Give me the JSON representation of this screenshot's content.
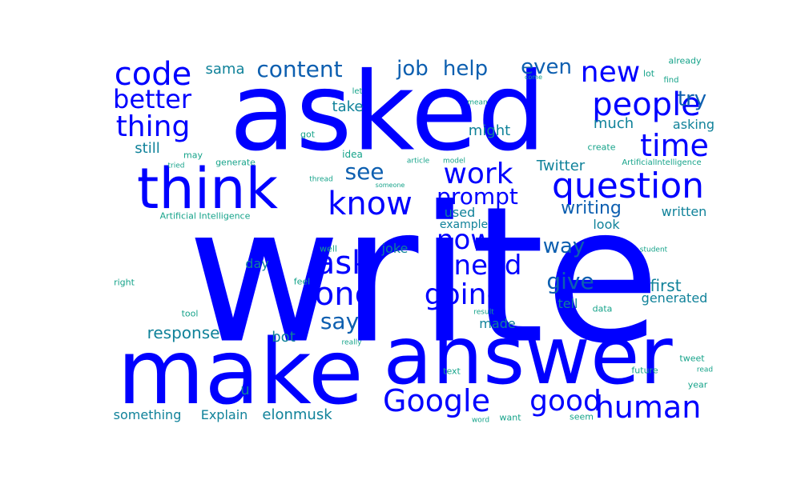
{
  "palette": {
    "primary": "#0000ff",
    "secondary": "#0d5fb0",
    "tertiary": "#10829a",
    "quaternary": "#16a38a"
  },
  "words": [
    {
      "text": "write",
      "level": "primary"
    },
    {
      "text": "asked",
      "level": "primary"
    },
    {
      "text": "make",
      "level": "primary"
    },
    {
      "text": "answer",
      "level": "primary"
    },
    {
      "text": "think",
      "level": "primary"
    },
    {
      "text": "question",
      "level": "primary"
    },
    {
      "text": "people",
      "level": "primary"
    },
    {
      "text": "code",
      "level": "primary"
    },
    {
      "text": "know",
      "level": "primary"
    },
    {
      "text": "time",
      "level": "primary"
    },
    {
      "text": "Google",
      "level": "primary"
    },
    {
      "text": "human",
      "level": "primary"
    },
    {
      "text": "thing",
      "level": "primary"
    },
    {
      "text": "better",
      "level": "primary"
    },
    {
      "text": "work",
      "level": "primary"
    },
    {
      "text": "new",
      "level": "primary"
    },
    {
      "text": "ask",
      "level": "primary"
    },
    {
      "text": "one",
      "level": "primary"
    },
    {
      "text": "going",
      "level": "primary"
    },
    {
      "text": "good",
      "level": "primary"
    },
    {
      "text": "now",
      "level": "primary"
    },
    {
      "text": "need",
      "level": "primary"
    },
    {
      "text": "prompt",
      "level": "primary"
    },
    {
      "text": "even",
      "level": "secondary"
    },
    {
      "text": "help",
      "level": "secondary"
    },
    {
      "text": "job",
      "level": "secondary"
    },
    {
      "text": "content",
      "level": "secondary"
    },
    {
      "text": "see",
      "level": "secondary"
    },
    {
      "text": "say",
      "level": "secondary"
    },
    {
      "text": "give",
      "level": "secondary"
    },
    {
      "text": "way",
      "level": "secondary"
    },
    {
      "text": "try",
      "level": "secondary"
    },
    {
      "text": "writing",
      "level": "secondary"
    },
    {
      "text": "Twitter",
      "level": "tertiary"
    },
    {
      "text": "response",
      "level": "tertiary"
    },
    {
      "text": "first",
      "level": "tertiary"
    },
    {
      "text": "sama",
      "level": "tertiary"
    },
    {
      "text": "much",
      "level": "tertiary"
    },
    {
      "text": "take",
      "level": "tertiary"
    },
    {
      "text": "might",
      "level": "tertiary"
    },
    {
      "text": "still",
      "level": "tertiary"
    },
    {
      "text": "asking",
      "level": "tertiary"
    },
    {
      "text": "used",
      "level": "tertiary"
    },
    {
      "text": "written",
      "level": "tertiary"
    },
    {
      "text": "look",
      "level": "tertiary"
    },
    {
      "text": "example",
      "level": "tertiary"
    },
    {
      "text": "joke",
      "level": "tertiary"
    },
    {
      "text": "day",
      "level": "tertiary"
    },
    {
      "text": "tell",
      "level": "tertiary"
    },
    {
      "text": "generated",
      "level": "tertiary"
    },
    {
      "text": "made",
      "level": "tertiary"
    },
    {
      "text": "bot",
      "level": "tertiary"
    },
    {
      "text": "u",
      "level": "tertiary"
    },
    {
      "text": "something",
      "level": "tertiary"
    },
    {
      "text": "Explain",
      "level": "tertiary"
    },
    {
      "text": "elonmusk",
      "level": "tertiary"
    },
    {
      "text": "Artificial Intelligence",
      "level": "quaternary"
    },
    {
      "text": "idea",
      "level": "quaternary"
    },
    {
      "text": "got",
      "level": "quaternary"
    },
    {
      "text": "may",
      "level": "quaternary"
    },
    {
      "text": "generate",
      "level": "quaternary"
    },
    {
      "text": "tried",
      "level": "quaternary"
    },
    {
      "text": "let",
      "level": "quaternary"
    },
    {
      "text": "mean",
      "level": "quaternary"
    },
    {
      "text": "create",
      "level": "quaternary"
    },
    {
      "text": "article",
      "level": "quaternary"
    },
    {
      "text": "model",
      "level": "quaternary"
    },
    {
      "text": "thread",
      "level": "quaternary"
    },
    {
      "text": "someone",
      "level": "quaternary"
    },
    {
      "text": "ArtificialIntelligence",
      "level": "quaternary"
    },
    {
      "text": "already",
      "level": "quaternary"
    },
    {
      "text": "lot",
      "level": "quaternary"
    },
    {
      "text": "come",
      "level": "quaternary"
    },
    {
      "text": "find",
      "level": "quaternary"
    },
    {
      "text": "well",
      "level": "quaternary"
    },
    {
      "text": "student",
      "level": "quaternary"
    },
    {
      "text": "right",
      "level": "quaternary"
    },
    {
      "text": "feel",
      "level": "quaternary"
    },
    {
      "text": "tool",
      "level": "quaternary"
    },
    {
      "text": "result",
      "level": "quaternary"
    },
    {
      "text": "data",
      "level": "quaternary"
    },
    {
      "text": "really",
      "level": "quaternary"
    },
    {
      "text": "text",
      "level": "quaternary"
    },
    {
      "text": "future",
      "level": "quaternary"
    },
    {
      "text": "tweet",
      "level": "quaternary"
    },
    {
      "text": "read",
      "level": "quaternary"
    },
    {
      "text": "year",
      "level": "quaternary"
    },
    {
      "text": "word",
      "level": "quaternary"
    },
    {
      "text": "want",
      "level": "quaternary"
    },
    {
      "text": "seem",
      "level": "quaternary"
    }
  ]
}
